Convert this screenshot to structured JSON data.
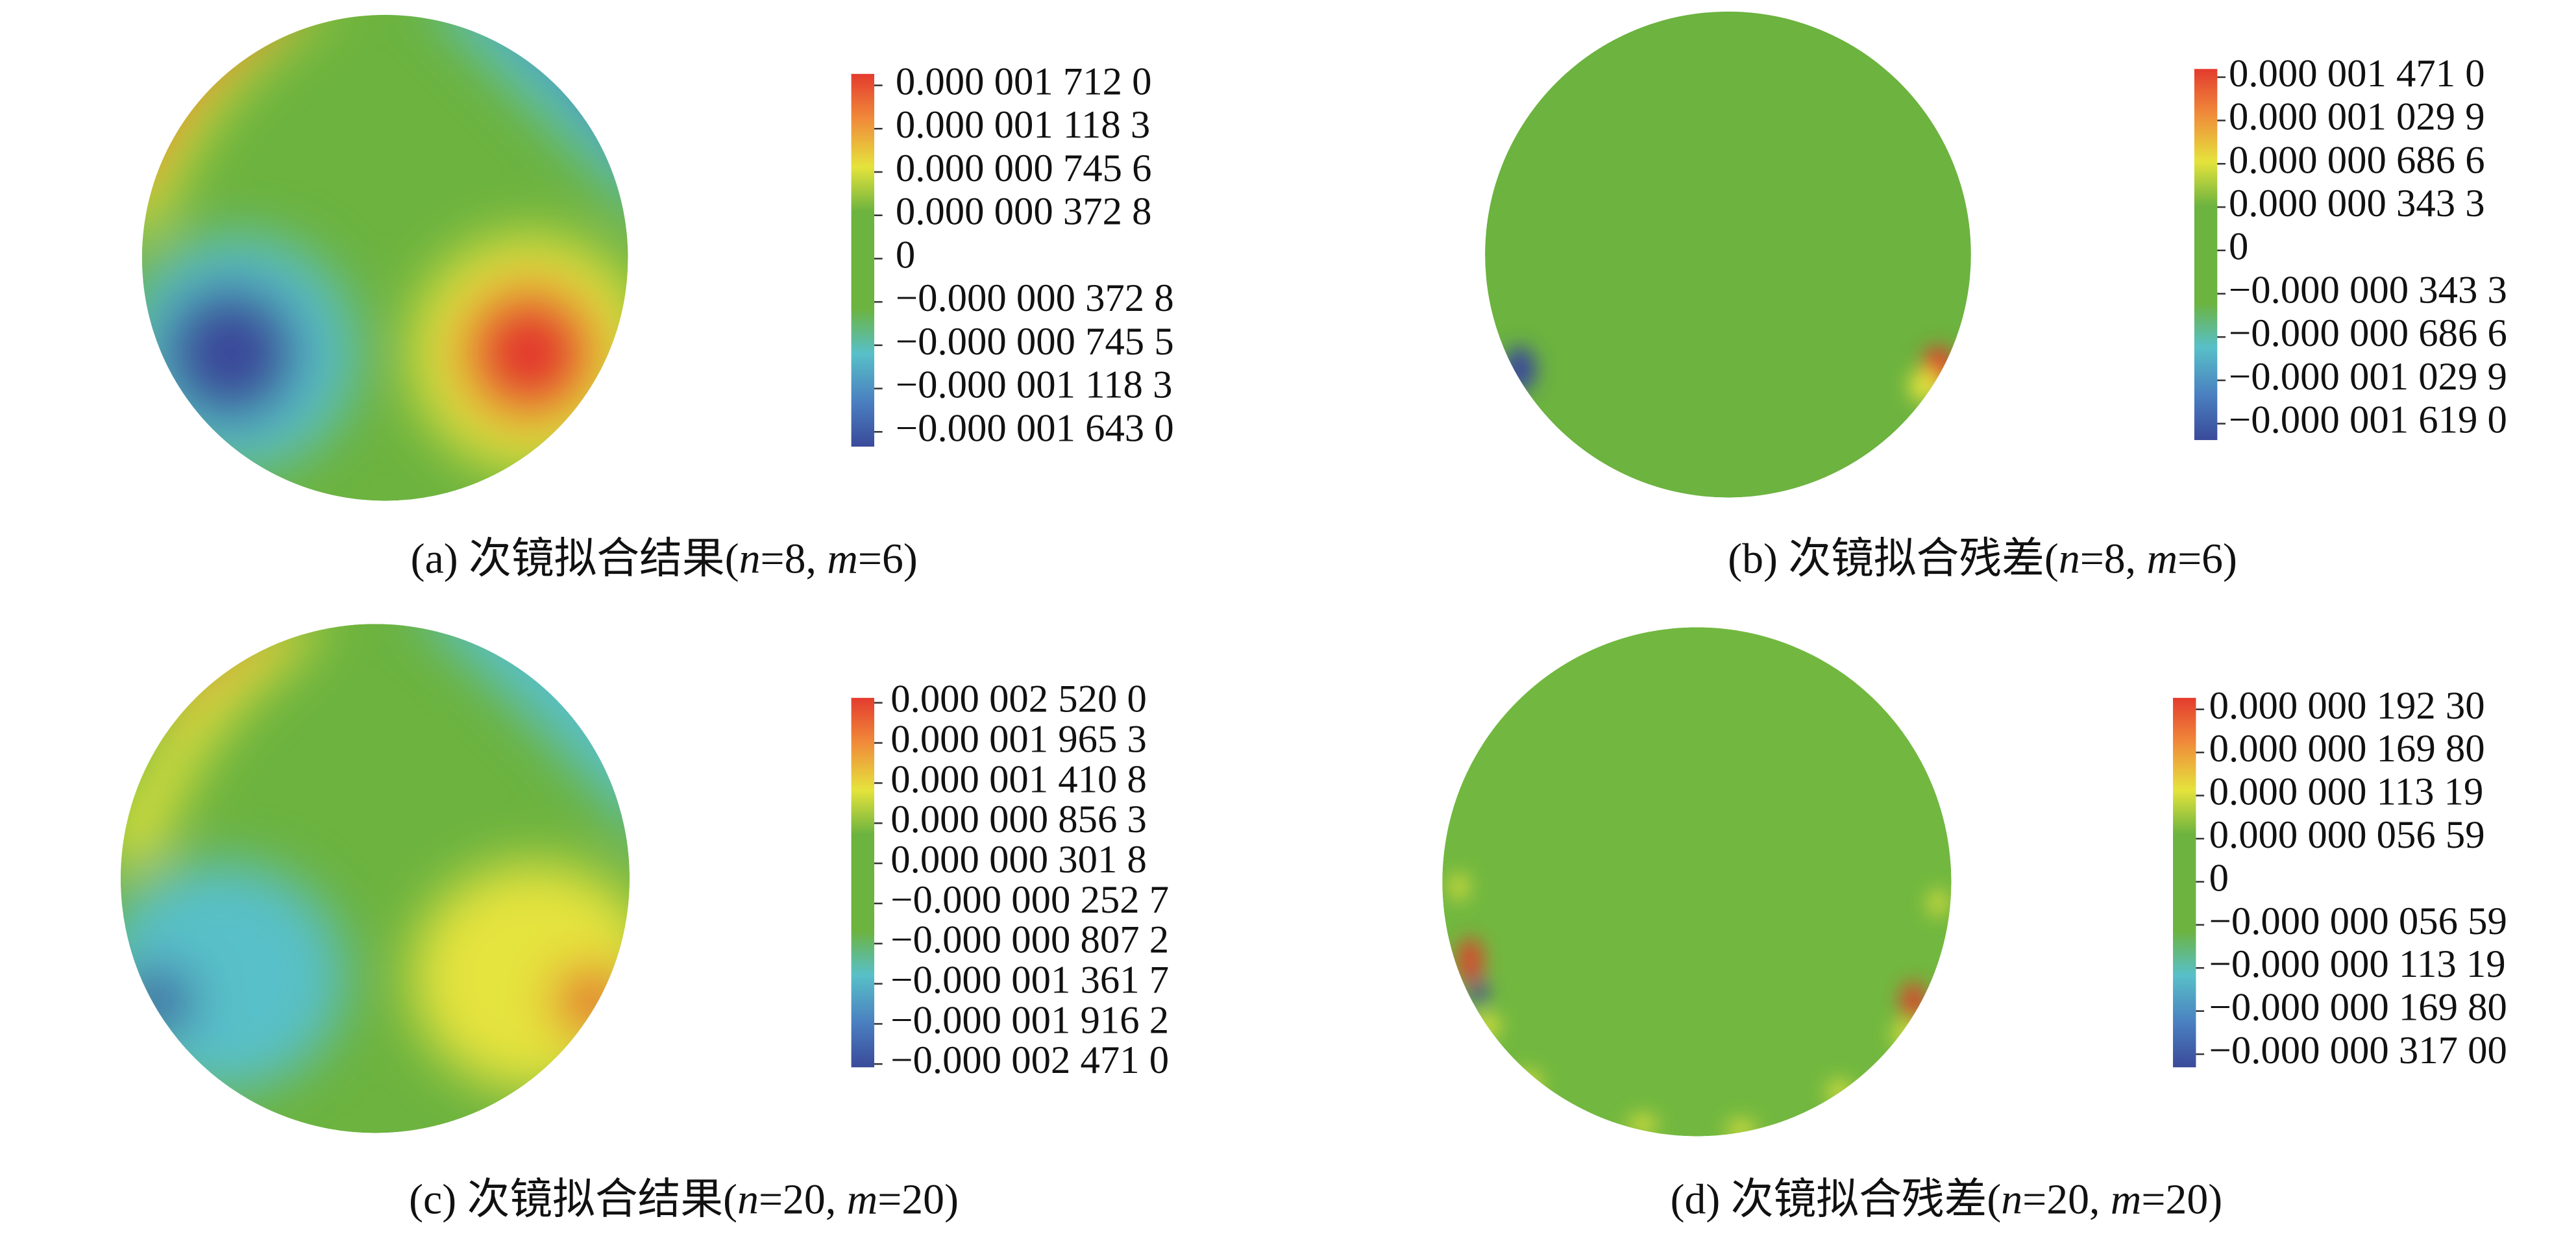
{
  "panels": [
    {
      "caption": [
        "(a) 次镜拟合结果(",
        "n",
        "=8, ",
        "m",
        "=6)"
      ],
      "colorbar": [
        "0.000 001 712 0",
        "0.000 001 118 3",
        "0.000 000 745 6",
        "0.000 000 372 8",
        "0",
        "−0.000 000 372 8",
        "−0.000 000 745 5",
        "−0.000 001 118 3",
        "−0.000 001 643 0"
      ]
    },
    {
      "caption": [
        "(b) 次镜拟合残差(",
        "n",
        "=8, ",
        "m",
        "=6)"
      ],
      "colorbar": [
        "0.000 001 471 0",
        "0.000 001 029 9",
        "0.000 000 686 6",
        "0.000 000 343 3",
        "0",
        "−0.000 000 343 3",
        "−0.000 000 686 6",
        "−0.000 001 029 9",
        "−0.000 001 619 0"
      ]
    },
    {
      "caption": [
        "(c) 次镜拟合结果(",
        "n",
        "=20, ",
        "m",
        "=20)"
      ],
      "colorbar": [
        "0.000 002 520 0",
        "0.000 001 965 3",
        "0.000 001 410 8",
        "0.000 000 856 3",
        "0.000 000 301 8",
        "−0.000 000 252 7",
        "−0.000 000 807 2",
        "−0.000 001 361 7",
        "−0.000 001 916 2",
        "−0.000 002 471 0"
      ]
    },
    {
      "caption": [
        "(d) 次镜拟合残差(",
        "n",
        "=20, ",
        "m",
        "=20)"
      ],
      "colorbar": [
        "0.000 000 192 30",
        "0.000 000 169 80",
        "0.000 000 113 19",
        "0.000 000 056 59",
        "0",
        "−0.000 000 056 59",
        "−0.000 000 113 19",
        "−0.000 000 169 80",
        "−0.000 000 317 00"
      ]
    }
  ]
}
